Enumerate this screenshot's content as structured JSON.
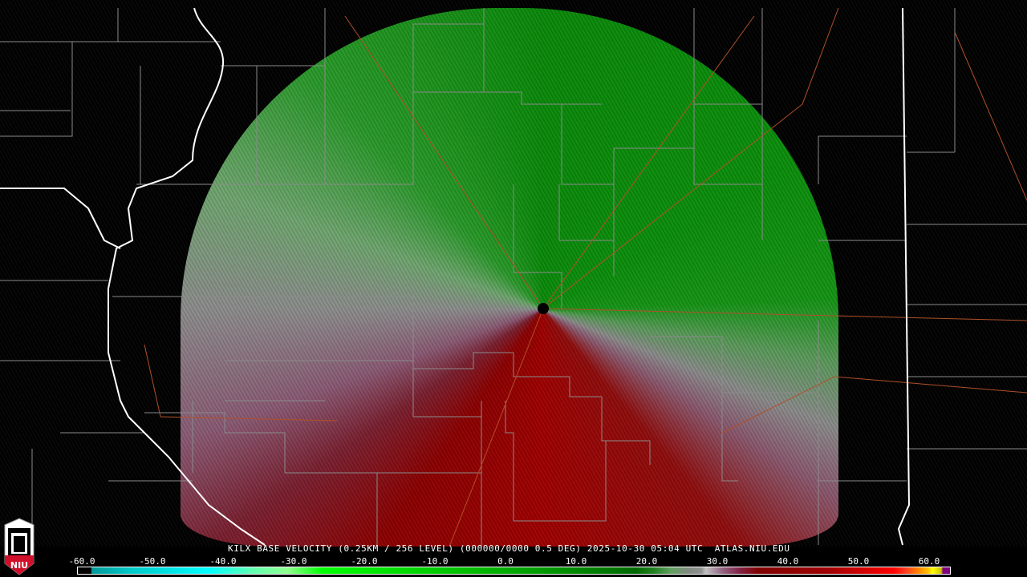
{
  "product": {
    "station": "KILX",
    "title_line": "KILX BASE VELOCITY (0.25KM / 256 LEVEL) (000000/0000 0.5 DEG) 2025-10-30 05:04 UTC  ATLAS.NIU.EDU",
    "product_name": "BASE VELOCITY",
    "elevation": "0.5 DEG",
    "datetime": "2025-10-30 05:04 UTC",
    "source": "ATLAS.NIU.EDU"
  },
  "logo": {
    "text": "NIU",
    "name": "niu-logo"
  },
  "colorbar": {
    "tick_labels": [
      "-60.0",
      "-50.0",
      "-40.0",
      "-30.0",
      "-20.0",
      "-10.0",
      "0.0",
      "10.0",
      "20.0",
      "30.0",
      "40.0",
      "50.0",
      "60.0"
    ],
    "colors": {
      "inbound_strong": "#00ffff",
      "inbound": "#00c000",
      "zero": "#909090",
      "outbound": "#a00000",
      "outbound_strong": "#ffff00",
      "range_folded": "#800080"
    }
  }
}
